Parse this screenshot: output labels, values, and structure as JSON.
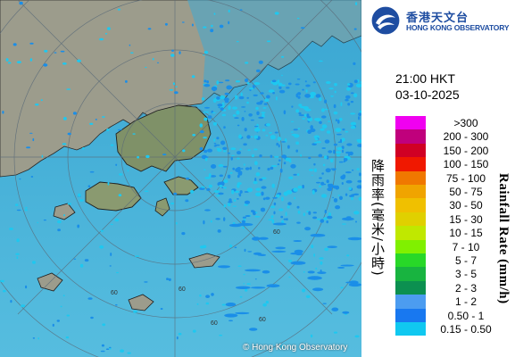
{
  "logo": {
    "name_cn": "香港天文台",
    "name_en": "HONG KONG OBSERVATORY",
    "brand_color": "#1e4da1",
    "icon": "hko-logo-icon"
  },
  "map": {
    "copyright": "© Hong Kong Observatory",
    "range_ring_labels": [
      "60",
      "60",
      "60",
      "60",
      "60"
    ],
    "sea_color": "#4fb2d8",
    "land_color": "#9a9a88",
    "rain_light_color": "#1ec8f0",
    "rain_mod_color": "#1a8ee8"
  },
  "timestamp": {
    "time": "21:00 HKT",
    "date": "03-10-2025"
  },
  "legend": {
    "title_en": "Rainfall Rate (mm/h)",
    "title_cn": "降雨率(毫米/小時)",
    "items": [
      {
        "label": ">300",
        "color": "#f000f0"
      },
      {
        "label": "200 - 300",
        "color": "#c0007c"
      },
      {
        "label": "150 - 200",
        "color": "#d00024"
      },
      {
        "label": "100 - 150",
        "color": "#f01800"
      },
      {
        "label": "75 - 100",
        "color": "#f07800"
      },
      {
        "label": "50 - 75",
        "color": "#f0a400"
      },
      {
        "label": "30 - 50",
        "color": "#f0c000"
      },
      {
        "label": "15 - 30",
        "color": "#e0d000"
      },
      {
        "label": "10 - 15",
        "color": "#c0e800"
      },
      {
        "label": "7 - 10",
        "color": "#80f000"
      },
      {
        "label": "5 - 7",
        "color": "#28d828"
      },
      {
        "label": "3 - 5",
        "color": "#18b440"
      },
      {
        "label": "2 - 3",
        "color": "#0c9050"
      },
      {
        "label": "1 - 2",
        "color": "#4c9cf0"
      },
      {
        "label": "0.50 - 1",
        "color": "#1878f0"
      },
      {
        "label": "0.15 - 0.50",
        "color": "#10c8f0"
      }
    ]
  }
}
